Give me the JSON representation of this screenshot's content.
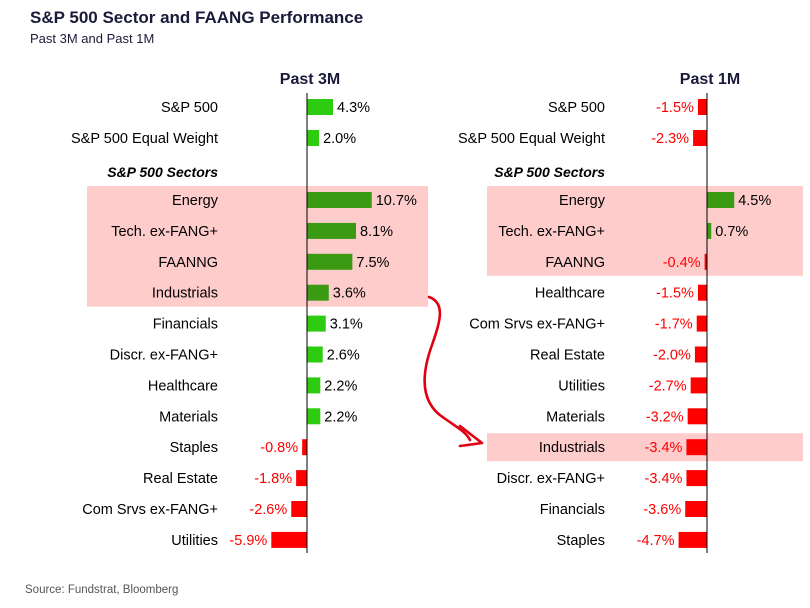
{
  "header": {
    "title": "S&P 500 Sector and FAANG Performance",
    "subtitle": "Past 3M and Past 1M"
  },
  "source": "Source: Fundstrat, Bloomberg",
  "colors": {
    "positive": "#2ecc11",
    "positive_highlight": "#3a9a14",
    "negative": "#ff0000",
    "highlight_band": "#ffcccc",
    "axis": "#000000",
    "negative_label": "#ff0000"
  },
  "chart_data": [
    {
      "type": "bar",
      "orientation": "horizontal",
      "title": "Past 3M",
      "section_label": "S&P 500 Sectors",
      "benchmarks": [
        {
          "category": "S&P 500",
          "value": 4.3,
          "label": "4.3%"
        },
        {
          "category": "S&P 500 Equal Weight",
          "value": 2.0,
          "label": "2.0%"
        }
      ],
      "sectors": [
        {
          "category": "Energy",
          "value": 10.7,
          "label": "10.7%",
          "highlight": true
        },
        {
          "category": "Tech. ex-FANG+",
          "value": 8.1,
          "label": "8.1%",
          "highlight": true
        },
        {
          "category": "FAANNG",
          "value": 7.5,
          "label": "7.5%",
          "highlight": true
        },
        {
          "category": "Industrials",
          "value": 3.6,
          "label": "3.6%",
          "highlight": true
        },
        {
          "category": "Financials",
          "value": 3.1,
          "label": "3.1%",
          "highlight": false
        },
        {
          "category": "Discr. ex-FANG+",
          "value": 2.6,
          "label": "2.6%",
          "highlight": false
        },
        {
          "category": "Healthcare",
          "value": 2.2,
          "label": "2.2%",
          "highlight": false
        },
        {
          "category": "Materials",
          "value": 2.2,
          "label": "2.2%",
          "highlight": false
        },
        {
          "category": "Staples",
          "value": -0.8,
          "label": "-0.8%",
          "highlight": false
        },
        {
          "category": "Real Estate",
          "value": -1.8,
          "label": "-1.8%",
          "highlight": false
        },
        {
          "category": "Com Srvs ex-FANG+",
          "value": -2.6,
          "label": "-2.6%",
          "highlight": false
        },
        {
          "category": "Utilities",
          "value": -5.9,
          "label": "-5.9%",
          "highlight": false
        }
      ]
    },
    {
      "type": "bar",
      "orientation": "horizontal",
      "title": "Past 1M",
      "section_label": "S&P 500 Sectors",
      "benchmarks": [
        {
          "category": "S&P 500",
          "value": -1.5,
          "label": "-1.5%"
        },
        {
          "category": "S&P 500 Equal Weight",
          "value": -2.3,
          "label": "-2.3%"
        }
      ],
      "sectors": [
        {
          "category": "Energy",
          "value": 4.5,
          "label": "4.5%",
          "highlight": true
        },
        {
          "category": "Tech. ex-FANG+",
          "value": 0.7,
          "label": "0.7%",
          "highlight": true
        },
        {
          "category": "FAANNG",
          "value": -0.4,
          "label": "-0.4%",
          "highlight": true
        },
        {
          "category": "Healthcare",
          "value": -1.5,
          "label": "-1.5%",
          "highlight": false
        },
        {
          "category": "Com Srvs ex-FANG+",
          "value": -1.7,
          "label": "-1.7%",
          "highlight": false
        },
        {
          "category": "Real Estate",
          "value": -2.0,
          "label": "-2.0%",
          "highlight": false
        },
        {
          "category": "Utilities",
          "value": -2.7,
          "label": "-2.7%",
          "highlight": false
        },
        {
          "category": "Materials",
          "value": -3.2,
          "label": "-3.2%",
          "highlight": false
        },
        {
          "category": "Industrials",
          "value": -3.4,
          "label": "-3.4%",
          "highlight": true
        },
        {
          "category": "Discr. ex-FANG+",
          "value": -3.4,
          "label": "-3.4%",
          "highlight": false
        },
        {
          "category": "Financials",
          "value": -3.6,
          "label": "-3.6%",
          "highlight": false
        },
        {
          "category": "Staples",
          "value": -4.7,
          "label": "-4.7%",
          "highlight": false
        }
      ]
    }
  ],
  "annotation": {
    "type": "arrow",
    "from": "Industrials (Past 3M)",
    "to": "Industrials (Past 1M)"
  }
}
